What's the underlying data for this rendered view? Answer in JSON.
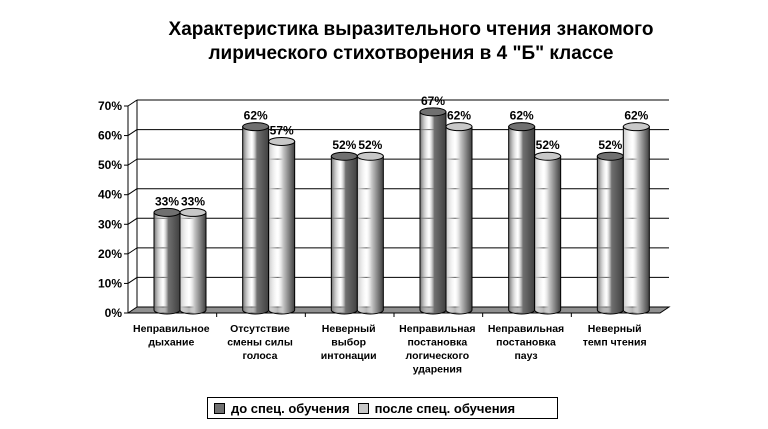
{
  "title_lines": [
    "Характеристика выразительного чтения знакомого",
    "лирического стихотворения в 4 \"Б\" классе"
  ],
  "colors": {
    "series0": "#707070",
    "series1": "#c8c8c8",
    "floor": "#909090"
  },
  "chart_data": {
    "type": "bar",
    "categories": [
      [
        "Неправильное",
        "дыхание"
      ],
      [
        "Отсутствие",
        "смены силы",
        "голоса"
      ],
      [
        "Неверный",
        "выбор",
        "интонации"
      ],
      [
        "Неправильная",
        "постановка",
        "логического",
        "ударения"
      ],
      [
        "Неправильная",
        "постановка",
        "пауз"
      ],
      [
        "Неверный",
        "темп чтения"
      ]
    ],
    "series": [
      {
        "name": "до спец. обучения",
        "values": [
          33,
          62,
          52,
          67,
          62,
          52
        ],
        "labels": [
          "33%",
          "62%",
          "52%",
          "67%",
          "62%",
          "52%"
        ]
      },
      {
        "name": "после спец. обучения",
        "values": [
          33,
          57,
          52,
          62,
          52,
          62
        ],
        "labels": [
          "33%",
          "57%",
          "52%",
          "62%",
          "52%",
          "62%"
        ]
      }
    ],
    "ylim": [
      0,
      70
    ],
    "yticks": [
      "0%",
      "10%",
      "20%",
      "30%",
      "40%",
      "50%",
      "60%",
      "70%"
    ],
    "grid": true,
    "legend_position": "bottom"
  }
}
